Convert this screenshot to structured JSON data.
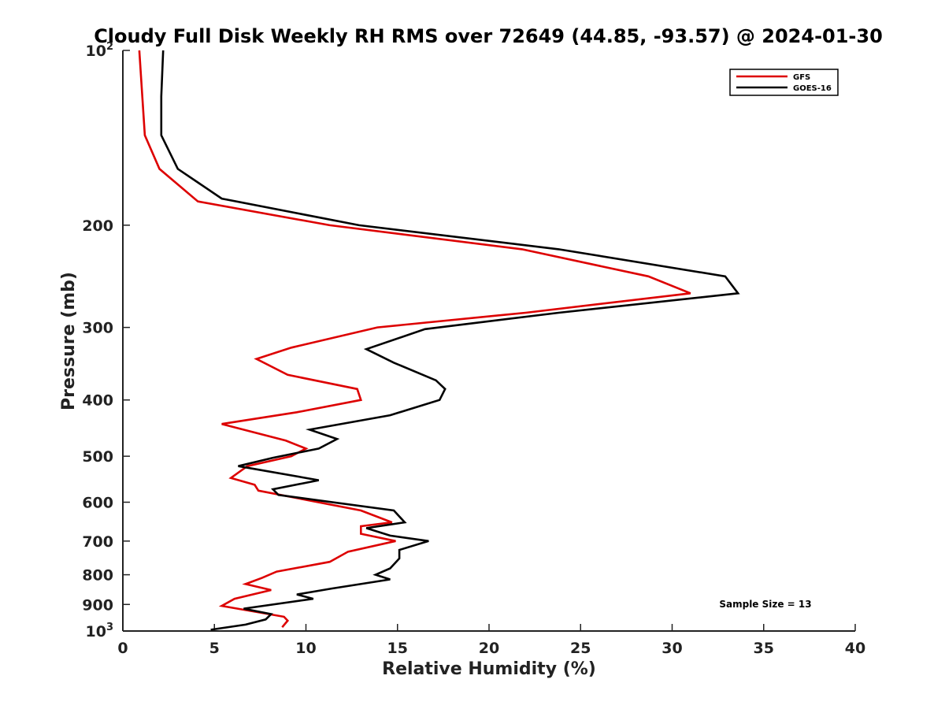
{
  "chart_data": {
    "type": "line",
    "title": "Cloudy Full Disk Weekly RH RMS over 72649 (44.85, -93.57) @ 2024-01-30",
    "xlabel": "Relative Humidity (%)",
    "ylabel": "Pressure (mb)",
    "xlim": [
      0,
      40
    ],
    "ylim": [
      100,
      1000
    ],
    "y_scale": "log",
    "y_reversed": true,
    "x_ticks": [
      "0",
      "5",
      "10",
      "15",
      "20",
      "25",
      "30",
      "35",
      "40"
    ],
    "y_ticks": [
      {
        "value": 100,
        "base": "10",
        "exp": "2"
      },
      {
        "value": 200,
        "label": "200"
      },
      {
        "value": 300,
        "label": "300"
      },
      {
        "value": 400,
        "label": "400"
      },
      {
        "value": 500,
        "label": "500"
      },
      {
        "value": 600,
        "label": "600"
      },
      {
        "value": 700,
        "label": "700"
      },
      {
        "value": 800,
        "label": "800"
      },
      {
        "value": 900,
        "label": "900"
      },
      {
        "value": 1000,
        "base": "10",
        "exp": "3"
      }
    ],
    "grid": false,
    "legend_position": "top-right",
    "annotation": "Sample Size = 13",
    "series": [
      {
        "name": "GFS",
        "color": "#dd0000",
        "points": [
          [
            0.9,
            100
          ],
          [
            1.2,
            140
          ],
          [
            2.0,
            160
          ],
          [
            4.1,
            182
          ],
          [
            11.3,
            200
          ],
          [
            21.8,
            220
          ],
          [
            28.7,
            245
          ],
          [
            31.0,
            262
          ],
          [
            22.0,
            283
          ],
          [
            13.9,
            300
          ],
          [
            9.2,
            325
          ],
          [
            7.3,
            340
          ],
          [
            9.0,
            362
          ],
          [
            12.8,
            383
          ],
          [
            13.0,
            400
          ],
          [
            9.5,
            420
          ],
          [
            5.4,
            440
          ],
          [
            8.9,
            470
          ],
          [
            10.0,
            485
          ],
          [
            9.2,
            500
          ],
          [
            6.8,
            520
          ],
          [
            5.9,
            545
          ],
          [
            7.2,
            560
          ],
          [
            7.4,
            573
          ],
          [
            13.0,
            620
          ],
          [
            14.7,
            650
          ],
          [
            13.0,
            660
          ],
          [
            13.0,
            680
          ],
          [
            14.9,
            700
          ],
          [
            12.3,
            730
          ],
          [
            11.3,
            760
          ],
          [
            8.4,
            790
          ],
          [
            7.6,
            810
          ],
          [
            6.7,
            830
          ],
          [
            8.1,
            850
          ],
          [
            6.1,
            880
          ],
          [
            5.4,
            905
          ],
          [
            8.8,
            945
          ],
          [
            9.0,
            960
          ],
          [
            8.7,
            985
          ]
        ]
      },
      {
        "name": "GOES-16",
        "color": "#000000",
        "points": [
          [
            2.2,
            100
          ],
          [
            2.1,
            120
          ],
          [
            2.1,
            140
          ],
          [
            3.0,
            160
          ],
          [
            5.4,
            180
          ],
          [
            12.9,
            200
          ],
          [
            23.8,
            220
          ],
          [
            32.9,
            245
          ],
          [
            33.6,
            262
          ],
          [
            23.8,
            283
          ],
          [
            16.5,
            302
          ],
          [
            13.3,
            327
          ],
          [
            14.8,
            345
          ],
          [
            17.1,
            370
          ],
          [
            17.6,
            383
          ],
          [
            17.3,
            400
          ],
          [
            14.6,
            425
          ],
          [
            10.2,
            450
          ],
          [
            11.7,
            467
          ],
          [
            10.7,
            485
          ],
          [
            8.2,
            503
          ],
          [
            6.3,
            520
          ],
          [
            10.7,
            550
          ],
          [
            8.2,
            570
          ],
          [
            8.5,
            583
          ],
          [
            14.8,
            620
          ],
          [
            15.4,
            650
          ],
          [
            13.3,
            665
          ],
          [
            14.6,
            685
          ],
          [
            16.7,
            700
          ],
          [
            15.1,
            725
          ],
          [
            15.1,
            750
          ],
          [
            14.6,
            780
          ],
          [
            13.8,
            800
          ],
          [
            14.6,
            815
          ],
          [
            11.4,
            845
          ],
          [
            9.5,
            865
          ],
          [
            10.4,
            880
          ],
          [
            6.6,
            915
          ],
          [
            8.1,
            935
          ],
          [
            7.8,
            955
          ],
          [
            6.7,
            975
          ],
          [
            4.8,
            995
          ]
        ]
      }
    ]
  }
}
